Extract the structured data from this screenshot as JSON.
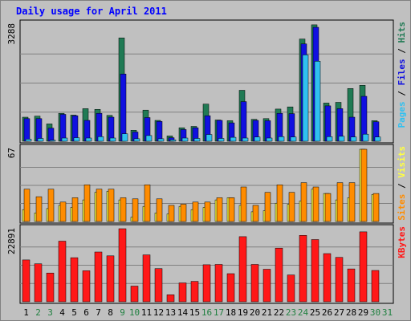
{
  "title": "Daily usage for April 2011",
  "colors": {
    "hits": "#207a54",
    "files": "#1010e0",
    "pages": "#30c0f0",
    "visits": "#ffff40",
    "sites": "#ff8c00",
    "kbytes": "#ff1818",
    "weekday_label": "#000000",
    "weekend_label": "#208040",
    "panel_bg": "#c0c0c0",
    "gridline": "#808080"
  },
  "chart_data": {
    "type": "bar",
    "x": [
      "1",
      "2",
      "3",
      "4",
      "5",
      "6",
      "7",
      "8",
      "9",
      "10",
      "11",
      "12",
      "13",
      "14",
      "15",
      "16",
      "17",
      "18",
      "19",
      "20",
      "21",
      "22",
      "23",
      "24",
      "25",
      "26",
      "27",
      "28",
      "29",
      "30",
      "31"
    ],
    "weekend_days": [
      "2",
      "3",
      "9",
      "10",
      "16",
      "17",
      "23",
      "24",
      "30",
      "31"
    ],
    "panels": [
      {
        "name": "usage",
        "max_label": "3288",
        "ylim": [
          0,
          3288
        ],
        "legend": [
          {
            "text": "Pages",
            "color_key": "pages"
          },
          {
            "text": " / ",
            "color_key": "weekday_label"
          },
          {
            "text": "Files",
            "color_key": "files"
          },
          {
            "text": " / ",
            "color_key": "weekday_label"
          },
          {
            "text": "Hits",
            "color_key": "hits"
          }
        ],
        "series": [
          {
            "name": "Hits",
            "color_key": "hits",
            "values": [
              680,
              710,
              490,
              790,
              740,
              920,
              900,
              730,
              2920,
              310,
              880,
              590,
              150,
              380,
              420,
              1050,
              600,
              580,
              1440,
              620,
              640,
              910,
              970,
              2890,
              3290,
              1080,
              1100,
              1490,
              1580,
              580,
              0
            ]
          },
          {
            "name": "Files",
            "color_key": "files",
            "values": [
              640,
              640,
              370,
              760,
              720,
              590,
              790,
              680,
              1900,
              260,
              670,
              560,
              100,
              330,
              380,
              720,
              590,
              520,
              1120,
              590,
              580,
              790,
              780,
              2750,
              3220,
              1000,
              920,
              680,
              1270,
              550,
              0
            ]
          },
          {
            "name": "Pages",
            "color_key": "pages",
            "values": [
              60,
              80,
              30,
              90,
              100,
              90,
              130,
              90,
              210,
              70,
              160,
              70,
              40,
              90,
              80,
              190,
              80,
              110,
              90,
              120,
              90,
              130,
              120,
              2440,
              2260,
              130,
              140,
              120,
              200,
              120,
              0
            ]
          }
        ]
      },
      {
        "name": "visits",
        "max_label": "67",
        "ylim": [
          0,
          67
        ],
        "legend": [
          {
            "text": "Sites",
            "color_key": "sites"
          },
          {
            "text": " / ",
            "color_key": "weekday_label"
          },
          {
            "text": "Visits",
            "color_key": "visits"
          }
        ],
        "series": [
          {
            "name": "Visits",
            "color_key": "visits",
            "values": [
              11,
              8,
              12,
              15,
              13,
              20,
              27,
              28,
              20,
              4,
              14,
              8,
              7,
              14,
              11,
              13,
              20,
              22,
              15,
              9,
              10,
              17,
              16,
              19,
              30,
              26,
              20,
              22,
              67,
              25,
              0
            ]
          },
          {
            "name": "Sites",
            "color_key": "sites",
            "values": [
              30,
              23,
              30,
              18,
              22,
              34,
              30,
              30,
              22,
              21,
              34,
              21,
              15,
              16,
              18,
              18,
              22,
              22,
              32,
              15,
              27,
              34,
              27,
              36,
              32,
              26,
              36,
              36,
              67,
              26,
              0
            ]
          }
        ]
      },
      {
        "name": "kbytes",
        "max_label": "22891",
        "ylim": [
          0,
          22891
        ],
        "legend": [
          {
            "text": "KBytes",
            "color_key": "kbytes"
          }
        ],
        "series": [
          {
            "name": "KBytes",
            "color_key": "kbytes",
            "values": [
              13100,
              11900,
              9000,
              19000,
              13800,
              9700,
              15600,
              14400,
              22891,
              4900,
              14700,
              10400,
              2200,
              5900,
              6400,
              11600,
              11700,
              8800,
              20400,
              11700,
              10200,
              16800,
              8400,
              20800,
              19500,
              15100,
              13900,
              10300,
              21900,
              9800,
              0
            ]
          }
        ]
      }
    ]
  }
}
